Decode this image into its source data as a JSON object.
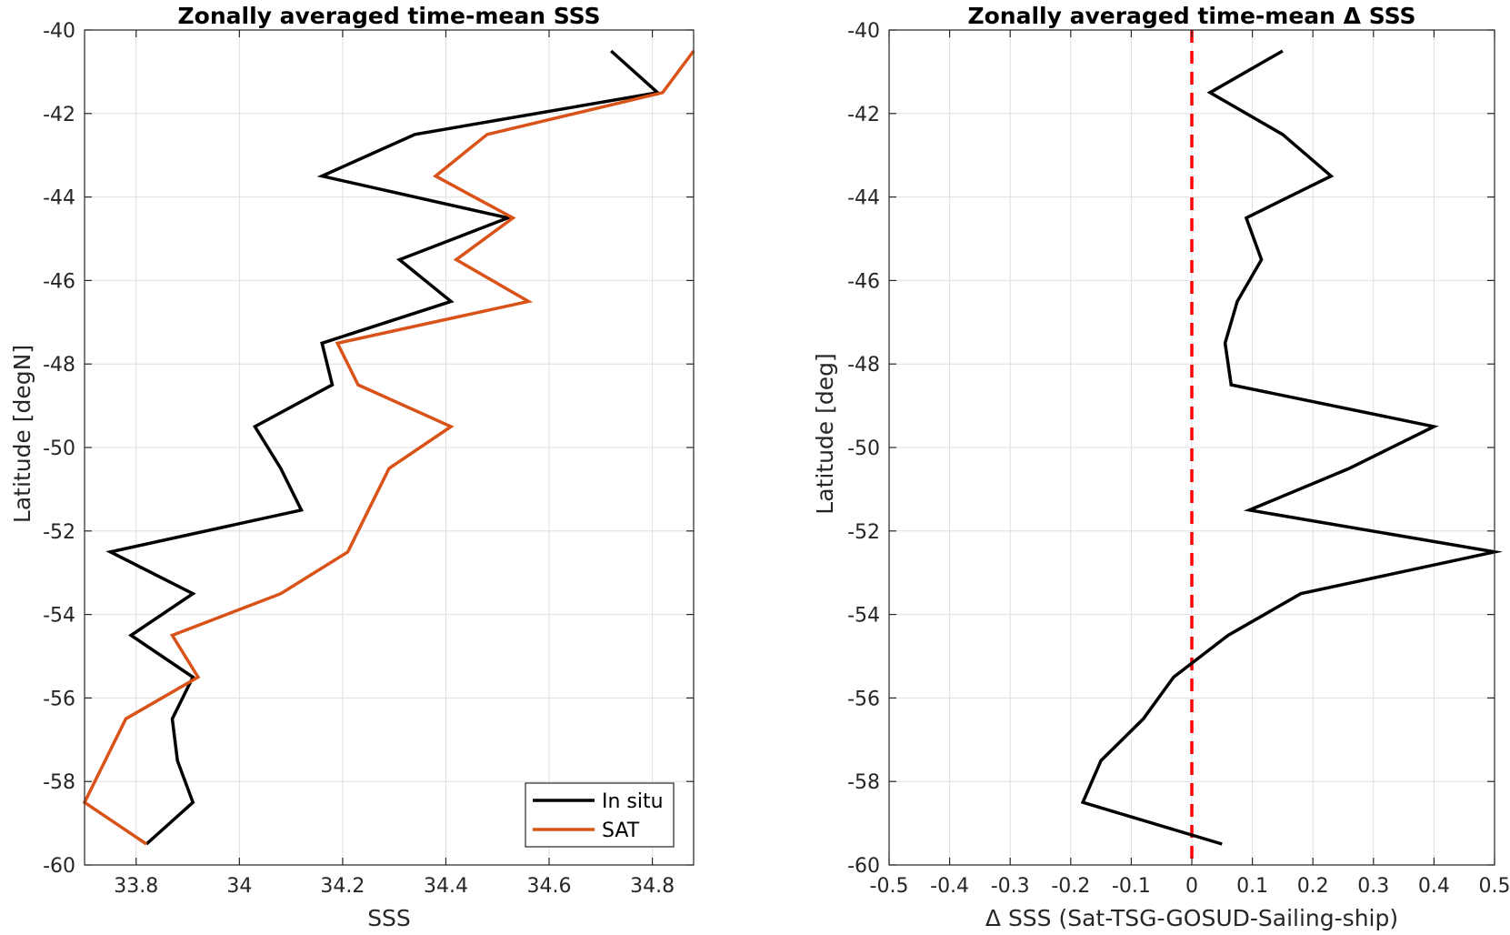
{
  "chart_data": [
    {
      "type": "line",
      "title": "Zonally averaged time-mean SSS",
      "xlabel": "SSS",
      "ylabel": "Latitude [degN]",
      "xlim": [
        33.7,
        34.88
      ],
      "ylim": [
        -60,
        -40
      ],
      "xticks": [
        33.8,
        34,
        34.2,
        34.4,
        34.6,
        34.8
      ],
      "xtick_labels": [
        "33.8",
        "34",
        "34.2",
        "34.4",
        "34.6",
        "34.8"
      ],
      "yticks": [
        -40,
        -42,
        -44,
        -46,
        -48,
        -50,
        -52,
        -54,
        -56,
        -58,
        -60
      ],
      "ytick_labels": [
        "-40",
        "-42",
        "-44",
        "-46",
        "-48",
        "-50",
        "-52",
        "-54",
        "-56",
        "-58",
        "-60"
      ],
      "grid": true,
      "legend": "bottom-right",
      "y": [
        -40.5,
        -41.5,
        -42.5,
        -43.5,
        -44.5,
        -45.5,
        -46.5,
        -47.5,
        -48.5,
        -49.5,
        -50.5,
        -51.5,
        -52.5,
        -53.5,
        -54.5,
        -55.5,
        -56.5,
        -57.5,
        -58.5,
        -59.5
      ],
      "series": [
        {
          "name": "In situ",
          "color": "#000000",
          "x": [
            34.72,
            34.81,
            34.34,
            34.16,
            34.52,
            34.31,
            34.41,
            34.16,
            34.18,
            34.03,
            34.08,
            34.12,
            33.75,
            33.91,
            33.79,
            33.91,
            33.87,
            33.88,
            33.91,
            33.82
          ]
        },
        {
          "name": "SAT",
          "color": "#d95319",
          "x": [
            34.88,
            34.82,
            34.48,
            34.38,
            34.53,
            34.42,
            34.56,
            34.19,
            34.23,
            34.41,
            34.29,
            34.25,
            34.21,
            34.08,
            33.87,
            33.92,
            33.78,
            null,
            33.7,
            33.82
          ]
        }
      ]
    },
    {
      "type": "line",
      "title": "Zonally averaged time-mean Δ SSS",
      "xlabel": "Δ SSS (Sat-TSG-GOSUD-Sailing-ship)",
      "ylabel": "Latitude [deg]",
      "xlim": [
        -0.5,
        0.5
      ],
      "ylim": [
        -60,
        -40
      ],
      "xticks": [
        -0.5,
        -0.4,
        -0.3,
        -0.2,
        -0.1,
        0,
        0.1,
        0.2,
        0.3,
        0.4,
        0.5
      ],
      "xtick_labels": [
        "-0.5",
        "-0.4",
        "-0.3",
        "-0.2",
        "-0.1",
        "0",
        "0.1",
        "0.2",
        "0.3",
        "0.4",
        "0.5"
      ],
      "yticks": [
        -40,
        -42,
        -44,
        -46,
        -48,
        -50,
        -52,
        -54,
        -56,
        -58,
        -60
      ],
      "ytick_labels": [
        "-40",
        "-42",
        "-44",
        "-46",
        "-48",
        "-50",
        "-52",
        "-54",
        "-56",
        "-58",
        "-60"
      ],
      "grid": true,
      "reference_line": {
        "x": 0,
        "color": "#ff0000",
        "style": "dashed"
      },
      "y": [
        -40.5,
        -41.5,
        -42.5,
        -43.5,
        -44.5,
        -45.5,
        -46.5,
        -47.5,
        -48.5,
        -49.5,
        -50.5,
        -51.5,
        -52.5,
        -53.5,
        -54.5,
        -55.5,
        -56.5,
        -57.5,
        -58.5,
        -59.5
      ],
      "series": [
        {
          "color": "#000000",
          "x": [
            0.15,
            0.03,
            0.15,
            0.23,
            0.09,
            0.115,
            0.075,
            0.055,
            0.065,
            0.4,
            0.26,
            0.095,
            0.5,
            0.18,
            0.06,
            -0.03,
            -0.08,
            -0.15,
            -0.18,
            0.05
          ]
        }
      ]
    }
  ]
}
